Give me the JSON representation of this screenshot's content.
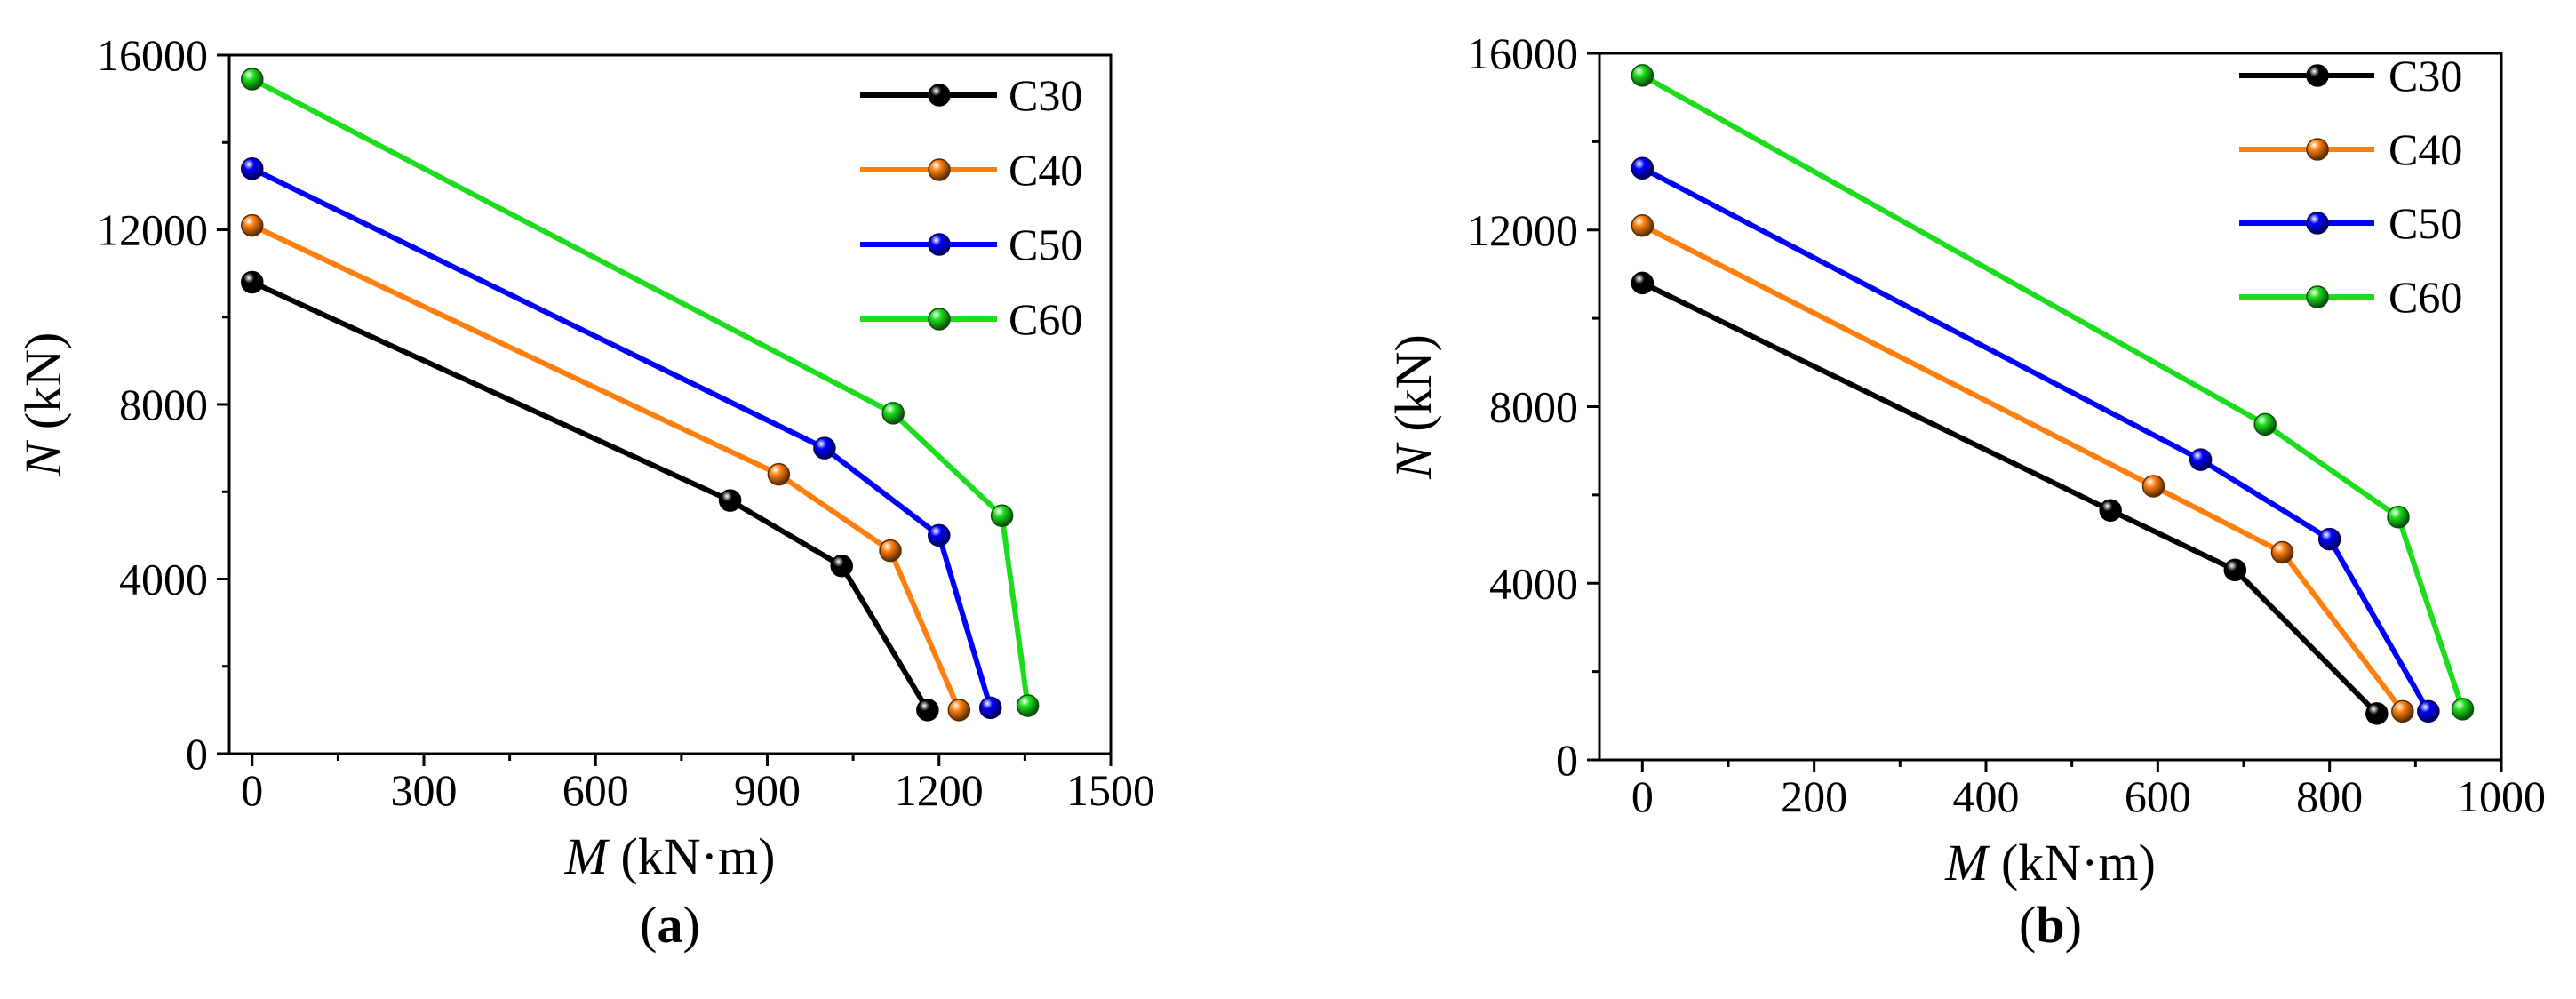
{
  "chart_data": [
    {
      "type": "line",
      "panel_label": "a",
      "xlabel_var": "M",
      "xlabel_unit": " (kN·m)",
      "ylabel_var": "N",
      "ylabel_unit": " (kN)",
      "xlim": [
        -40,
        1500
      ],
      "ylim": [
        0,
        16000
      ],
      "xticks": [
        0,
        300,
        600,
        900,
        1200,
        1500
      ],
      "yticks": [
        0,
        4000,
        8000,
        12000,
        16000
      ],
      "xtick_labels": [
        "0",
        "300",
        "600",
        "900",
        "1200",
        "1500"
      ],
      "ytick_labels": [
        "0",
        "4000",
        "8000",
        "12000",
        "16000"
      ],
      "legend_position": "top-right",
      "series": [
        {
          "name": "C30",
          "color": "#000000",
          "x": [
            0,
            835,
            1030,
            1180
          ],
          "y": [
            10800,
            5800,
            4300,
            1000
          ]
        },
        {
          "name": "C40",
          "color": "#ff7f0e",
          "x": [
            0,
            920,
            1115,
            1235
          ],
          "y": [
            12100,
            6400,
            4650,
            1000
          ]
        },
        {
          "name": "C50",
          "color": "#0000ff",
          "x": [
            0,
            1000,
            1200,
            1290
          ],
          "y": [
            13400,
            7000,
            5000,
            1050
          ]
        },
        {
          "name": "C60",
          "color": "#1cdd1c",
          "x": [
            0,
            1120,
            1310,
            1355
          ],
          "y": [
            15450,
            7800,
            5450,
            1100
          ]
        }
      ]
    },
    {
      "type": "line",
      "panel_label": "b",
      "xlabel_var": "M",
      "xlabel_unit": " (kN·m)",
      "ylabel_var": "N",
      "ylabel_unit": " (kN)",
      "xlim": [
        -50,
        1000
      ],
      "ylim": [
        0,
        16000
      ],
      "xticks": [
        0,
        200,
        400,
        600,
        800,
        1000
      ],
      "yticks": [
        0,
        4000,
        8000,
        12000,
        16000
      ],
      "xtick_labels": [
        "0",
        "200",
        "400",
        "600",
        "800",
        "1000"
      ],
      "ytick_labels": [
        "0",
        "4000",
        "8000",
        "12000",
        "16000"
      ],
      "legend_position": "top-right",
      "series": [
        {
          "name": "C30",
          "color": "#000000",
          "x": [
            0,
            545,
            690,
            855
          ],
          "y": [
            10800,
            5650,
            4300,
            1050
          ]
        },
        {
          "name": "C40",
          "color": "#ff7f0e",
          "x": [
            0,
            595,
            745,
            885
          ],
          "y": [
            12100,
            6200,
            4700,
            1100
          ]
        },
        {
          "name": "C50",
          "color": "#0000ff",
          "x": [
            0,
            650,
            800,
            915
          ],
          "y": [
            13400,
            6800,
            5000,
            1100
          ]
        },
        {
          "name": "C60",
          "color": "#1cdd1c",
          "x": [
            0,
            725,
            880,
            955
          ],
          "y": [
            15500,
            7600,
            5500,
            1150
          ]
        }
      ]
    }
  ]
}
